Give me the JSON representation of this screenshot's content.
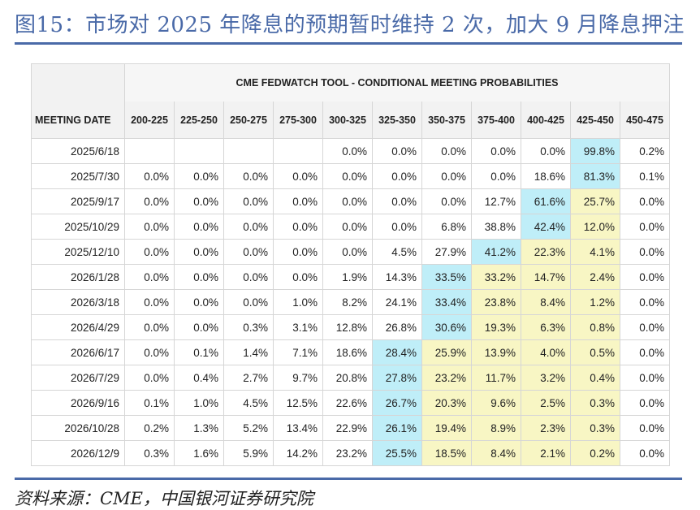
{
  "title": "图15：市场对 2025 年降息的预期暂时维持 2 次，加大 9 月降息押注",
  "source": "资料来源：CME，中国银河证券研究院",
  "colors": {
    "accent": "#4a6aa8",
    "highlight_blue": "#bfeef8",
    "highlight_yellow": "#f8f6c4"
  },
  "table": {
    "tool_title": "CME FEDWATCH TOOL - CONDITIONAL MEETING PROBABILITIES",
    "date_header": "MEETING DATE",
    "columns": [
      "200-225",
      "225-250",
      "250-275",
      "275-300",
      "300-325",
      "325-350",
      "350-375",
      "375-400",
      "400-425",
      "425-450",
      "450-475"
    ],
    "rows": [
      {
        "date": "2025/6/18",
        "values": [
          "",
          "",
          "",
          "",
          "0.0%",
          "0.0%",
          "0.0%",
          "0.0%",
          "0.0%",
          "99.8%",
          "0.2%"
        ],
        "highlights": [
          "",
          "",
          "",
          "",
          "",
          "",
          "",
          "",
          "",
          "blue",
          ""
        ]
      },
      {
        "date": "2025/7/30",
        "values": [
          "0.0%",
          "0.0%",
          "0.0%",
          "0.0%",
          "0.0%",
          "0.0%",
          "0.0%",
          "0.0%",
          "18.6%",
          "81.3%",
          "0.1%"
        ],
        "highlights": [
          "",
          "",
          "",
          "",
          "",
          "",
          "",
          "",
          "",
          "blue",
          ""
        ]
      },
      {
        "date": "2025/9/17",
        "values": [
          "0.0%",
          "0.0%",
          "0.0%",
          "0.0%",
          "0.0%",
          "0.0%",
          "0.0%",
          "12.7%",
          "61.6%",
          "25.7%",
          "0.0%"
        ],
        "highlights": [
          "",
          "",
          "",
          "",
          "",
          "",
          "",
          "",
          "blue",
          "yellow",
          ""
        ]
      },
      {
        "date": "2025/10/29",
        "values": [
          "0.0%",
          "0.0%",
          "0.0%",
          "0.0%",
          "0.0%",
          "0.0%",
          "6.8%",
          "38.8%",
          "42.4%",
          "12.0%",
          "0.0%"
        ],
        "highlights": [
          "",
          "",
          "",
          "",
          "",
          "",
          "",
          "",
          "blue",
          "yellow",
          ""
        ]
      },
      {
        "date": "2025/12/10",
        "values": [
          "0.0%",
          "0.0%",
          "0.0%",
          "0.0%",
          "0.0%",
          "4.5%",
          "27.9%",
          "41.2%",
          "22.3%",
          "4.1%",
          "0.0%"
        ],
        "highlights": [
          "",
          "",
          "",
          "",
          "",
          "",
          "",
          "blue",
          "yellow",
          "yellow",
          ""
        ]
      },
      {
        "date": "2026/1/28",
        "values": [
          "0.0%",
          "0.0%",
          "0.0%",
          "0.0%",
          "1.9%",
          "14.3%",
          "33.5%",
          "33.2%",
          "14.7%",
          "2.4%",
          "0.0%"
        ],
        "highlights": [
          "",
          "",
          "",
          "",
          "",
          "",
          "blue",
          "yellow",
          "yellow",
          "yellow",
          ""
        ]
      },
      {
        "date": "2026/3/18",
        "values": [
          "0.0%",
          "0.0%",
          "0.0%",
          "1.0%",
          "8.2%",
          "24.1%",
          "33.4%",
          "23.8%",
          "8.4%",
          "1.2%",
          "0.0%"
        ],
        "highlights": [
          "",
          "",
          "",
          "",
          "",
          "",
          "blue",
          "yellow",
          "yellow",
          "yellow",
          ""
        ]
      },
      {
        "date": "2026/4/29",
        "values": [
          "0.0%",
          "0.0%",
          "0.3%",
          "3.1%",
          "12.8%",
          "26.8%",
          "30.6%",
          "19.3%",
          "6.3%",
          "0.8%",
          "0.0%"
        ],
        "highlights": [
          "",
          "",
          "",
          "",
          "",
          "",
          "blue",
          "yellow",
          "yellow",
          "yellow",
          ""
        ]
      },
      {
        "date": "2026/6/17",
        "values": [
          "0.0%",
          "0.1%",
          "1.4%",
          "7.1%",
          "18.6%",
          "28.4%",
          "25.9%",
          "13.9%",
          "4.0%",
          "0.5%",
          "0.0%"
        ],
        "highlights": [
          "",
          "",
          "",
          "",
          "",
          "blue",
          "yellow",
          "yellow",
          "yellow",
          "yellow",
          ""
        ]
      },
      {
        "date": "2026/7/29",
        "values": [
          "0.0%",
          "0.4%",
          "2.7%",
          "9.7%",
          "20.8%",
          "27.8%",
          "23.2%",
          "11.7%",
          "3.2%",
          "0.4%",
          "0.0%"
        ],
        "highlights": [
          "",
          "",
          "",
          "",
          "",
          "blue",
          "yellow",
          "yellow",
          "yellow",
          "yellow",
          ""
        ]
      },
      {
        "date": "2026/9/16",
        "values": [
          "0.1%",
          "1.0%",
          "4.5%",
          "12.5%",
          "22.6%",
          "26.7%",
          "20.3%",
          "9.6%",
          "2.5%",
          "0.3%",
          "0.0%"
        ],
        "highlights": [
          "",
          "",
          "",
          "",
          "",
          "blue",
          "yellow",
          "yellow",
          "yellow",
          "yellow",
          ""
        ]
      },
      {
        "date": "2026/10/28",
        "values": [
          "0.2%",
          "1.3%",
          "5.2%",
          "13.4%",
          "22.9%",
          "26.1%",
          "19.4%",
          "8.9%",
          "2.3%",
          "0.3%",
          "0.0%"
        ],
        "highlights": [
          "",
          "",
          "",
          "",
          "",
          "blue",
          "yellow",
          "yellow",
          "yellow",
          "yellow",
          ""
        ]
      },
      {
        "date": "2026/12/9",
        "values": [
          "0.3%",
          "1.6%",
          "5.9%",
          "14.2%",
          "23.2%",
          "25.5%",
          "18.5%",
          "8.4%",
          "2.1%",
          "0.2%",
          "0.0%"
        ],
        "highlights": [
          "",
          "",
          "",
          "",
          "",
          "blue",
          "yellow",
          "yellow",
          "yellow",
          "yellow",
          ""
        ]
      }
    ]
  }
}
